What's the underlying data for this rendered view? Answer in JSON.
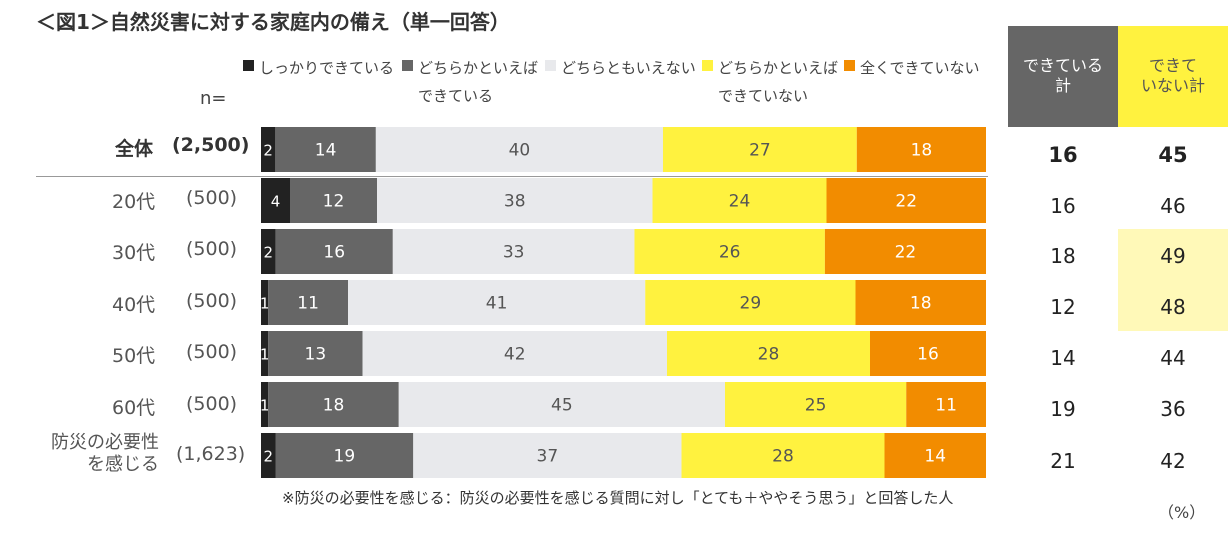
{
  "title": "＜図1＞自然災害に対する家庭内の備え（単一回答）",
  "n_label": "n=",
  "headers": {
    "done_total": "できている\n計",
    "not_done_total": "できて\nいない計"
  },
  "footnote": "※防災の必要性を感じる：防災の必要性を感じる質問に対し「とても＋ややそう思う」と回答した人",
  "unit_label": "（%）",
  "colors": {
    "s1": "#222222",
    "s2": "#666666",
    "s3": "#e8e9ec",
    "s4": "#fff23f",
    "s5": "#f28c00",
    "hdr_done": "#666666",
    "hdr_not_done": "#fff23f",
    "highlight": "#fff9b8"
  },
  "chart_data": {
    "type": "bar",
    "orientation": "horizontal",
    "stacked": true,
    "title": "＜図1＞自然災害に対する家庭内の備え（単一回答）",
    "xlim": [
      0,
      100
    ],
    "legend_position": "top",
    "categories": [
      "全体",
      "20代",
      "30代",
      "40代",
      "50代",
      "60代",
      "防災の必要性\nを感じる"
    ],
    "n": [
      "(2,500)",
      "(500)",
      "(500)",
      "(500)",
      "(500)",
      "(500)",
      "(1,623)"
    ],
    "series": [
      {
        "name": "しっかりできている",
        "values": [
          2,
          4,
          2,
          1,
          1,
          1,
          2
        ]
      },
      {
        "name": "どちらかといえば\nできている",
        "values": [
          14,
          12,
          16,
          11,
          13,
          18,
          19
        ]
      },
      {
        "name": "どちらともいえない",
        "values": [
          40,
          38,
          33,
          41,
          42,
          45,
          37
        ]
      },
      {
        "name": "どちらかといえば\nできていない",
        "values": [
          27,
          24,
          26,
          29,
          28,
          25,
          28
        ]
      },
      {
        "name": "全くできていない",
        "values": [
          18,
          22,
          22,
          18,
          16,
          11,
          14
        ]
      }
    ],
    "done_total": [
      16,
      16,
      18,
      12,
      14,
      19,
      21
    ],
    "not_done_total": [
      45,
      46,
      49,
      48,
      44,
      36,
      42
    ],
    "highlighted_not_done_rows": [
      2,
      3
    ]
  }
}
